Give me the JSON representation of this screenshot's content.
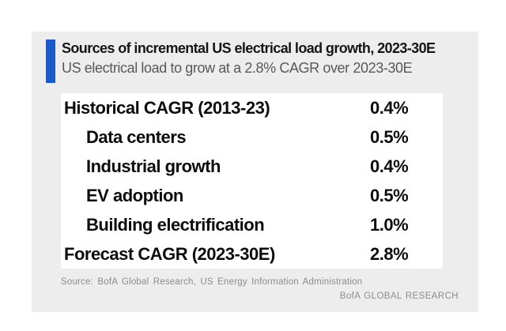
{
  "chart_data": {
    "type": "table",
    "title": "Sources of incremental US electrical load growth, 2023-30E",
    "subtitle": "US electrical load to grow at a 2.8% CAGR over 2023-30E",
    "rows": [
      {
        "label": "Historical CAGR (2013-23)",
        "value": "0.4%",
        "value_num": 0.4,
        "indent": false
      },
      {
        "label": "Data centers",
        "value": "0.5%",
        "value_num": 0.5,
        "indent": true
      },
      {
        "label": "Industrial growth",
        "value": "0.4%",
        "value_num": 0.4,
        "indent": true
      },
      {
        "label": "EV adoption",
        "value": "0.5%",
        "value_num": 0.5,
        "indent": true
      },
      {
        "label": "Building electrification",
        "value": "1.0%",
        "value_num": 1.0,
        "indent": true
      },
      {
        "label": "Forecast CAGR (2023-30E)",
        "value": "2.8%",
        "value_num": 2.8,
        "indent": false
      }
    ],
    "values_pct": [
      0.4,
      0.5,
      0.4,
      0.5,
      1.0,
      2.8
    ],
    "source": "Source:  BofA Global Research,  US Energy  Information  Administration",
    "branding": "BofA GLOBAL RESEARCH"
  },
  "colors": {
    "accent_blue": "#1b5bc9",
    "card_background": "#ededed",
    "table_background": "#ffffff",
    "title_text": "#161616",
    "subtitle_text": "#595959",
    "footnote_text": "#8c8c8c"
  }
}
